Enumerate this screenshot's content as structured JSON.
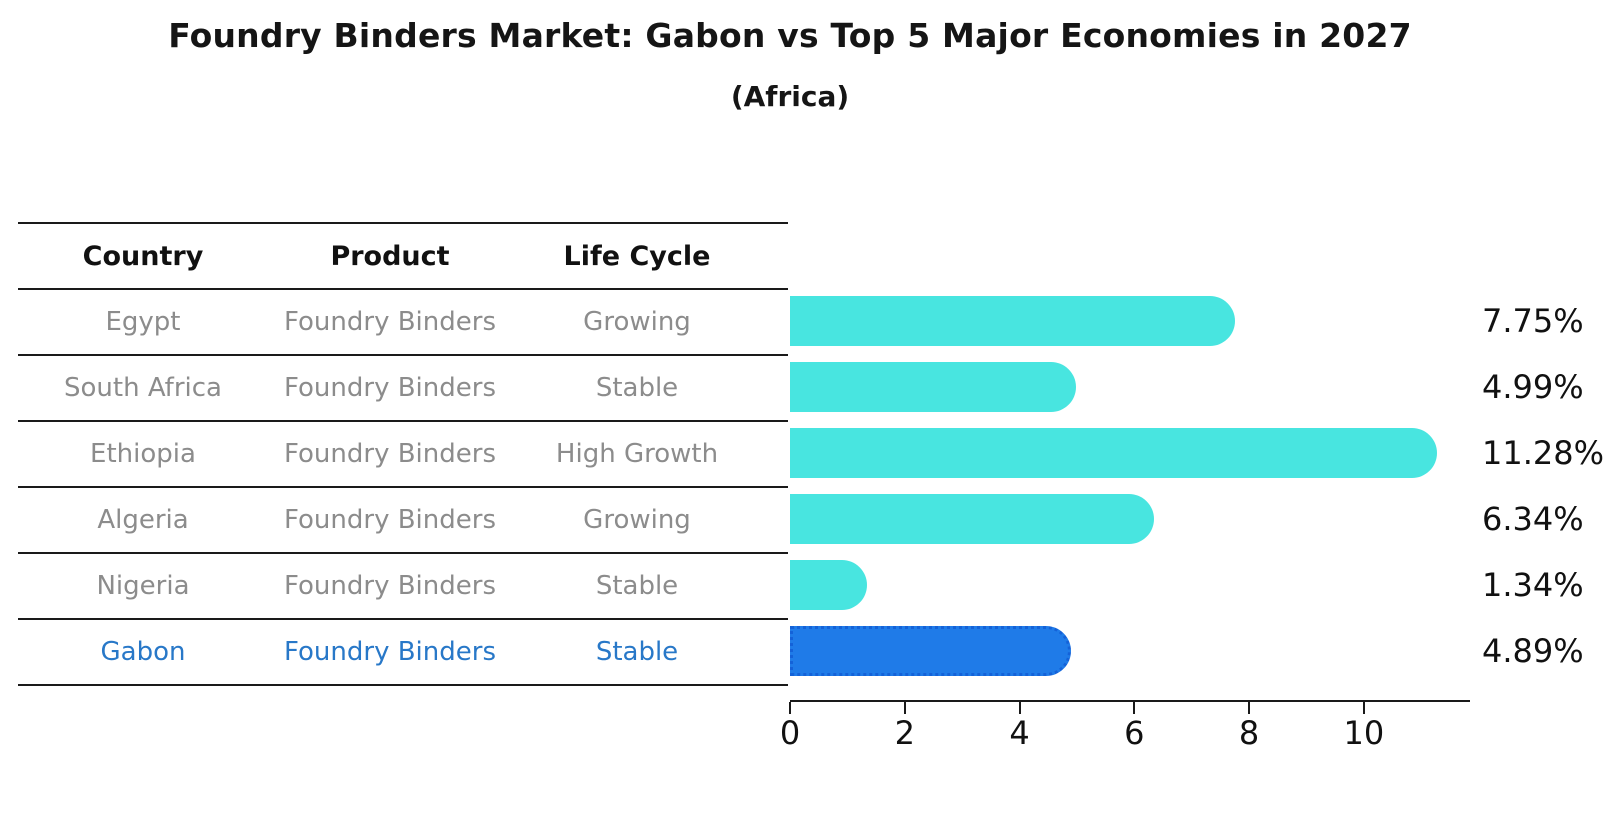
{
  "title": "Foundry Binders Market: Gabon vs Top 5 Major Economies in 2027",
  "subtitle": "(Africa)",
  "table": {
    "headers": [
      "Country",
      "Product",
      "Life Cycle"
    ],
    "rows": [
      {
        "country": "Egypt",
        "product": "Foundry Binders",
        "life_cycle": "Growing",
        "highlight": false
      },
      {
        "country": "South Africa",
        "product": "Foundry Binders",
        "life_cycle": "Stable",
        "highlight": false
      },
      {
        "country": "Ethiopia",
        "product": "Foundry Binders",
        "life_cycle": "High Growth",
        "highlight": false
      },
      {
        "country": "Algeria",
        "product": "Foundry Binders",
        "life_cycle": "Growing",
        "highlight": false
      },
      {
        "country": "Nigeria",
        "product": "Foundry Binders",
        "life_cycle": "Stable",
        "highlight": false
      },
      {
        "country": "Gabon",
        "product": "Foundry Binders",
        "life_cycle": "Stable",
        "highlight": true
      }
    ]
  },
  "chart_data": {
    "type": "bar",
    "orientation": "horizontal",
    "title": "Foundry Binders Market: Gabon vs Top 5 Major Economies in 2027",
    "subtitle": "(Africa)",
    "categories": [
      "Egypt",
      "South Africa",
      "Ethiopia",
      "Algeria",
      "Nigeria",
      "Gabon"
    ],
    "values": [
      7.75,
      4.99,
      11.28,
      6.34,
      1.34,
      4.89
    ],
    "value_labels": [
      "7.75%",
      "4.99%",
      "11.28%",
      "6.34%",
      "1.34%",
      "4.89%"
    ],
    "x_ticks": [
      0,
      2,
      4,
      6,
      8,
      10
    ],
    "xlim": [
      0,
      11.85
    ],
    "xlabel": "",
    "ylabel": "",
    "grid": false,
    "legend_position": "none",
    "bar_color": "#48e5e0",
    "highlight_bar_color": "#1f7be8",
    "highlight_index": 5,
    "highlight_text_color": "#2878c8"
  }
}
